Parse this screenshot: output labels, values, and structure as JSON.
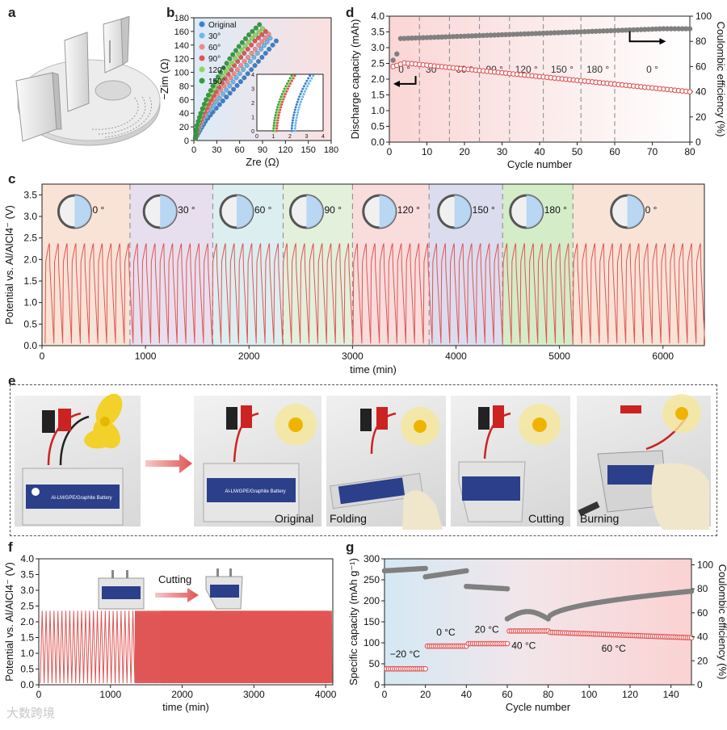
{
  "panel_letters": {
    "a": "a",
    "b": "b",
    "c": "c",
    "d": "d",
    "e": "e",
    "f": "f",
    "g": "g"
  },
  "colors": {
    "red": "#e05555",
    "blue": "#3a7fd0",
    "green": "#2e9e3e",
    "grey": "#808080",
    "orange_light": "#8fd65a"
  },
  "photos": {
    "labels": [
      "Original",
      "Folding",
      "Cutting",
      "Burning"
    ],
    "pouch_text": "Al-LM/GPE/Graphite Battery"
  },
  "f_inset_label": "Cutting",
  "watermark": "大数跨境",
  "chart_data": [
    {
      "id": "b",
      "type": "scatter",
      "xlabel": "Zre (Ω)",
      "ylabel": "−Zim (Ω)",
      "xlim": [
        0,
        180
      ],
      "ylim": [
        0,
        180
      ],
      "xticks": [
        "0",
        "30",
        "60",
        "90",
        "120",
        "150",
        "180"
      ],
      "yticks": [
        "0",
        "20",
        "40",
        "60",
        "80",
        "100",
        "120",
        "140",
        "160",
        "180"
      ],
      "legend": [
        "Original",
        "30°",
        "60°",
        "90°",
        "120°",
        "150°"
      ],
      "legend_colors": [
        "#3a7fd0",
        "#6bb8e8",
        "#f08a8a",
        "#e05555",
        "#8fd65a",
        "#2e9e3e"
      ],
      "series": [
        {
          "name": "Original",
          "x": [
            2,
            8,
            15,
            25,
            38,
            52,
            66,
            80,
            94,
            108
          ],
          "y": [
            3,
            15,
            28,
            42,
            58,
            75,
            92,
            110,
            128,
            146
          ]
        },
        {
          "name": "30°",
          "x": [
            2,
            7,
            13,
            22,
            34,
            47,
            60,
            74,
            88,
            100
          ],
          "y": [
            3,
            16,
            30,
            45,
            62,
            80,
            98,
            116,
            134,
            150
          ]
        },
        {
          "name": "60°",
          "x": [
            2,
            6,
            12,
            20,
            31,
            44,
            57,
            71,
            85,
            98
          ],
          "y": [
            3,
            18,
            33,
            50,
            68,
            86,
            104,
            122,
            140,
            156
          ]
        },
        {
          "name": "90°",
          "x": [
            2,
            5,
            11,
            19,
            29,
            41,
            53,
            66,
            80,
            94
          ],
          "y": [
            4,
            20,
            36,
            54,
            72,
            91,
            110,
            128,
            146,
            160
          ]
        },
        {
          "name": "120°",
          "x": [
            2,
            5,
            10,
            17,
            27,
            38,
            50,
            63,
            76,
            90
          ],
          "y": [
            4,
            21,
            38,
            57,
            76,
            95,
            114,
            133,
            150,
            164
          ]
        },
        {
          "name": "150°",
          "x": [
            2,
            4,
            9,
            16,
            25,
            35,
            47,
            59,
            72,
            86
          ],
          "y": [
            4,
            22,
            40,
            60,
            80,
            100,
            120,
            138,
            155,
            170
          ]
        }
      ],
      "inset": {
        "xlim": [
          0,
          4
        ],
        "ylim": [
          0,
          4
        ],
        "xticks": [
          "0",
          "1",
          "2",
          "3",
          "4"
        ],
        "yticks": [
          "0",
          "1",
          "2",
          "3",
          "4"
        ]
      }
    },
    {
      "id": "d",
      "type": "scatter",
      "xlabel": "Cycle number",
      "ylabel": "Discharge capacity (mAh)",
      "y2label": "Coulombic efficiency (%)",
      "xlim": [
        0,
        80
      ],
      "ylim": [
        0,
        4.0
      ],
      "y2lim": [
        0,
        100
      ],
      "xticks": [
        "0",
        "10",
        "20",
        "30",
        "40",
        "50",
        "60",
        "70",
        "80"
      ],
      "yticks": [
        "0.0",
        "0.5",
        "1.0",
        "1.5",
        "2.0",
        "2.5",
        "3.0",
        "3.5",
        "4.0"
      ],
      "y2ticks": [
        "0",
        "20",
        "40",
        "60",
        "80",
        "100"
      ],
      "segments": [
        "0 °",
        "30 °",
        "60 °",
        "90 °",
        "120 °",
        "150 °",
        "180 °",
        "0 °"
      ],
      "segment_bounds": [
        0,
        8,
        16,
        24,
        32,
        41,
        51,
        60,
        80
      ],
      "capacity_start": 2.55,
      "capacity_end": 1.6,
      "ce_start": 60,
      "ce_end": 90
    },
    {
      "id": "c",
      "type": "line",
      "xlabel": "time (min)",
      "ylabel": "Potential vs. Al/AlCl4⁻ (V)",
      "xlim": [
        0,
        6400
      ],
      "ylim": [
        0,
        3.75
      ],
      "xticks": [
        "0",
        "1000",
        "2000",
        "3000",
        "4000",
        "5000",
        "6000"
      ],
      "yticks": [
        "0.0",
        "0.25",
        "0.5",
        "0.75",
        "1.0",
        "1.25",
        "1.5",
        "1.75",
        "2.0",
        "2.25",
        "2.5",
        "2.75",
        "3.0",
        "3.25",
        "3.5"
      ],
      "ytick_labels": [
        "0.0",
        "0.5",
        "1.0",
        "1.5",
        "2.0",
        "2.5",
        "3.0",
        "3.5"
      ],
      "segments": [
        "0 °",
        "30 °",
        "60 °",
        "90 °",
        "120 °",
        "150 °",
        "180 °",
        "0 °"
      ],
      "segment_bounds": [
        0,
        850,
        1650,
        2330,
        3000,
        3740,
        4450,
        5130,
        6400
      ],
      "segment_colors": [
        "#f9e3d6",
        "#e8dfee",
        "#dceef0",
        "#e2f0dc",
        "#f9dcdc",
        "#dcdcef",
        "#d4ecc8",
        "#f9e3d6"
      ],
      "v_max": 2.35,
      "v_min": 0.05,
      "cycle_min": 85
    },
    {
      "id": "f",
      "type": "line",
      "xlabel": "time (min)",
      "ylabel": "Potential vs. Al/AlCl4⁻ (V)",
      "xlim": [
        0,
        4100
      ],
      "ylim": [
        0,
        4.0
      ],
      "xticks": [
        "0",
        "1000",
        "2000",
        "3000",
        "4000"
      ],
      "ytick_labels": [
        "0.0",
        "0.5",
        "1.0",
        "1.5",
        "2.0",
        "2.5",
        "3.0",
        "3.5",
        "4.0"
      ],
      "v_max": 2.35,
      "v_min": 0.05,
      "cut_time": 1300
    },
    {
      "id": "g",
      "type": "scatter",
      "xlabel": "Cycle number",
      "ylabel": "Specific capacity (mAh g⁻¹)",
      "y2label": "Coulombic efficiency (%)",
      "xlim": [
        0,
        150
      ],
      "ylim": [
        0,
        300
      ],
      "y2lim": [
        0,
        105
      ],
      "xticks": [
        "0",
        "20",
        "40",
        "60",
        "80",
        "100",
        "120",
        "140"
      ],
      "yticks": [
        "0",
        "50",
        "100",
        "150",
        "200",
        "250",
        "300"
      ],
      "y2ticks": [
        "0",
        "20",
        "40",
        "60",
        "80",
        "100"
      ],
      "temps": [
        "−20 °C",
        "0 °C",
        "20 °C",
        "40 °C",
        "60 °C"
      ],
      "capacity_segments": [
        {
          "from": 0,
          "to": 20,
          "value": 38
        },
        {
          "from": 20,
          "to": 40,
          "value": 92
        },
        {
          "from": 40,
          "to": 60,
          "value": 98
        },
        {
          "from": 60,
          "to": 80,
          "value": 128
        },
        {
          "from": 80,
          "to": 150,
          "start": 125,
          "end": 112
        }
      ],
      "ce_segments": [
        {
          "from": 0,
          "to": 20,
          "start": 95,
          "end": 97
        },
        {
          "from": 20,
          "to": 40,
          "start": 90,
          "end": 95
        },
        {
          "from": 40,
          "to": 60,
          "start": 82,
          "end": 80
        },
        {
          "from": 60,
          "to": 80,
          "start": 55,
          "end": 52
        },
        {
          "from": 80,
          "to": 150,
          "start": 55,
          "end": 78
        }
      ]
    }
  ]
}
